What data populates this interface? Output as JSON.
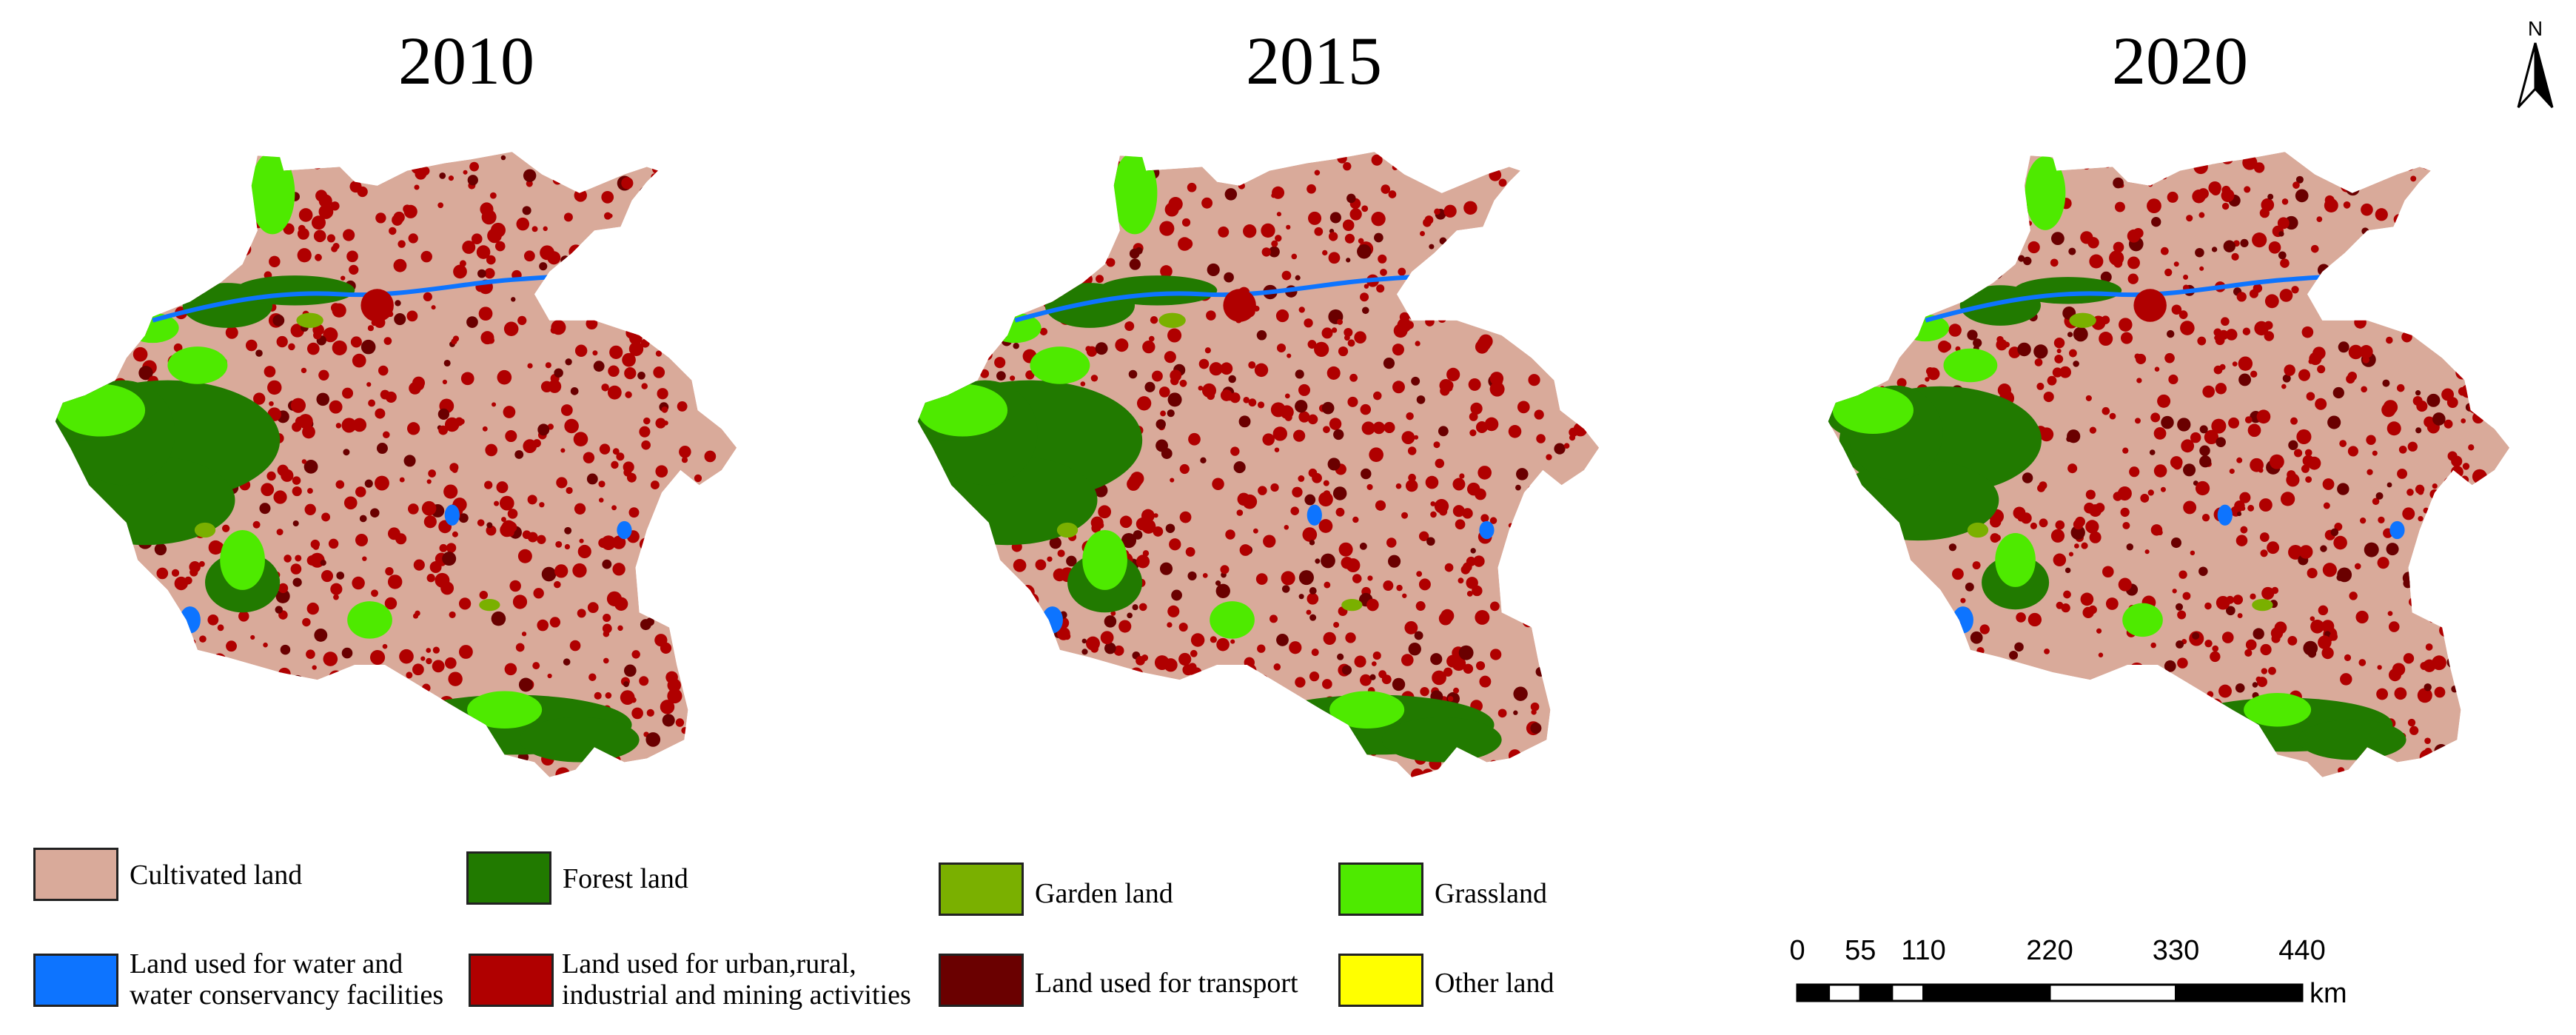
{
  "titles": [
    "2010",
    "2015",
    "2020"
  ],
  "north_arrow": {
    "label": "N"
  },
  "legend": [
    {
      "label": "Cultivated land",
      "color": "#d9aa9a"
    },
    {
      "label": "Forest land",
      "color": "#217a00"
    },
    {
      "label": "Garden land",
      "color": "#7ab000"
    },
    {
      "label": "Grassland",
      "color": "#4eea00"
    },
    {
      "label_lines": [
        "Land used for water and",
        "water conservancy facilities"
      ],
      "color": "#0d74ff"
    },
    {
      "label_lines": [
        "Land used for urban,rural,",
        "industrial and mining activities"
      ],
      "color": "#b00000"
    },
    {
      "label": "Land used for transport",
      "color": "#6a0000"
    },
    {
      "label": "Other land",
      "color": "#ffff00"
    }
  ],
  "scale_bar": {
    "ticks": [
      "0",
      "55",
      "110",
      "220",
      "330",
      "440"
    ],
    "unit": "km"
  }
}
